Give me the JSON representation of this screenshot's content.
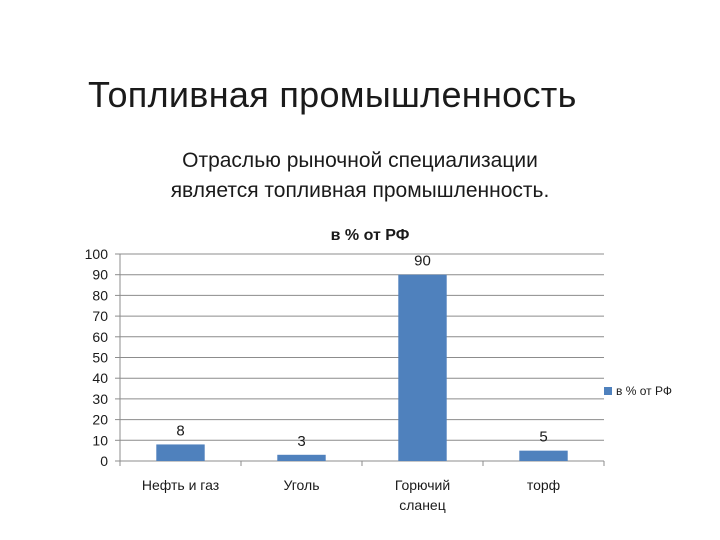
{
  "slide": {
    "title": "Топливная промышленность",
    "subtitle_lines": [
      "Отраслью рыночной специализации",
      "является топливная промышленность."
    ]
  },
  "chart_data": {
    "type": "bar",
    "title": "в % от РФ",
    "categories": [
      "Нефть и газ",
      "Уголь",
      "Горючий сланец",
      "торф"
    ],
    "category_label_lines": [
      [
        "Нефть и газ"
      ],
      [
        "Уголь"
      ],
      [
        "Горючий",
        "сланец"
      ],
      [
        "торф"
      ]
    ],
    "series": [
      {
        "name": "в % от РФ",
        "values": [
          8,
          3,
          90,
          5
        ]
      }
    ],
    "data_labels": [
      "8",
      "3",
      "90",
      "5"
    ],
    "ylim": [
      0,
      100
    ],
    "yticks": [
      0,
      10,
      20,
      30,
      40,
      50,
      60,
      70,
      80,
      90,
      100
    ],
    "grid": true,
    "legend_position": "right",
    "colors": {
      "bar": "#4f81bd",
      "grid": "#8c8c8c",
      "axis": "#8c8c8c"
    }
  }
}
